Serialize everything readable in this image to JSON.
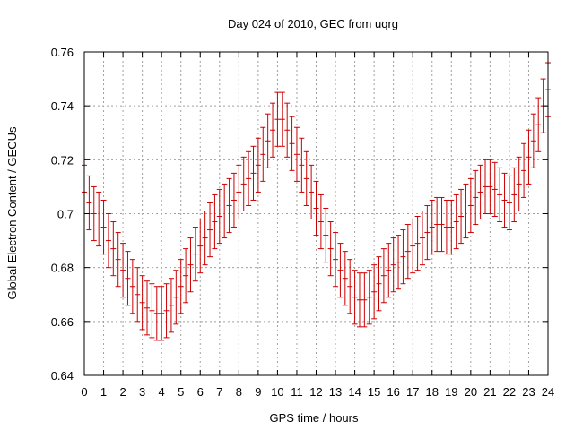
{
  "chart_data": {
    "type": "scatter",
    "title": "Day 024 of 2010, GEC from uqrg",
    "xlabel": "GPS time / hours",
    "ylabel": "Global Electron Content / GECUs",
    "xlim": [
      0,
      24
    ],
    "ylim": [
      0.64,
      0.76
    ],
    "grid": true,
    "legend": "none",
    "series_color": "#cc0000",
    "x_ticks": [
      0,
      1,
      2,
      3,
      4,
      5,
      6,
      7,
      8,
      9,
      10,
      11,
      12,
      13,
      14,
      15,
      16,
      17,
      18,
      19,
      20,
      21,
      22,
      23,
      24
    ],
    "y_ticks": [
      "0.64",
      "0.66",
      "0.68",
      "0.7",
      "0.72",
      "0.74",
      "0.76"
    ],
    "series": [
      {
        "x": [
          0,
          0.25,
          0.5,
          0.75,
          1,
          1.25,
          1.5,
          1.75,
          2,
          2.25,
          2.5,
          2.75,
          3,
          3.25,
          3.5,
          3.75,
          4,
          4.25,
          4.5,
          4.75,
          5,
          5.25,
          5.5,
          5.75,
          6,
          6.25,
          6.5,
          6.75,
          7,
          7.25,
          7.5,
          7.75,
          8,
          8.25,
          8.5,
          8.75,
          9,
          9.25,
          9.5,
          9.75,
          10,
          10.25,
          10.5,
          10.75,
          11,
          11.25,
          11.5,
          11.75,
          12,
          12.25,
          12.5,
          12.75,
          13,
          13.25,
          13.5,
          13.75,
          14,
          14.25,
          14.5,
          14.75,
          15,
          15.25,
          15.5,
          15.75,
          16,
          16.25,
          16.5,
          16.75,
          17,
          17.25,
          17.5,
          17.75,
          18,
          18.25,
          18.5,
          18.75,
          19,
          19.25,
          19.5,
          19.75,
          20,
          20.25,
          20.5,
          20.75,
          21,
          21.25,
          21.5,
          21.75,
          22,
          22.25,
          22.5,
          22.75,
          23,
          23.25,
          23.5,
          23.75,
          24
        ],
        "y": [
          0.708,
          0.704,
          0.7,
          0.698,
          0.695,
          0.69,
          0.687,
          0.683,
          0.679,
          0.676,
          0.673,
          0.67,
          0.667,
          0.665,
          0.664,
          0.663,
          0.663,
          0.664,
          0.666,
          0.669,
          0.673,
          0.677,
          0.681,
          0.685,
          0.688,
          0.691,
          0.694,
          0.697,
          0.699,
          0.701,
          0.703,
          0.705,
          0.708,
          0.711,
          0.713,
          0.715,
          0.718,
          0.722,
          0.727,
          0.731,
          0.735,
          0.735,
          0.731,
          0.726,
          0.722,
          0.718,
          0.713,
          0.708,
          0.702,
          0.697,
          0.692,
          0.687,
          0.683,
          0.679,
          0.676,
          0.673,
          0.669,
          0.668,
          0.668,
          0.669,
          0.671,
          0.674,
          0.677,
          0.679,
          0.681,
          0.682,
          0.684,
          0.686,
          0.688,
          0.689,
          0.691,
          0.693,
          0.695,
          0.696,
          0.696,
          0.695,
          0.695,
          0.697,
          0.699,
          0.701,
          0.703,
          0.706,
          0.708,
          0.71,
          0.71,
          0.709,
          0.707,
          0.705,
          0.704,
          0.707,
          0.711,
          0.716,
          0.721,
          0.727,
          0.733,
          0.74,
          0.746
        ],
        "error": 0.01
      }
    ]
  }
}
